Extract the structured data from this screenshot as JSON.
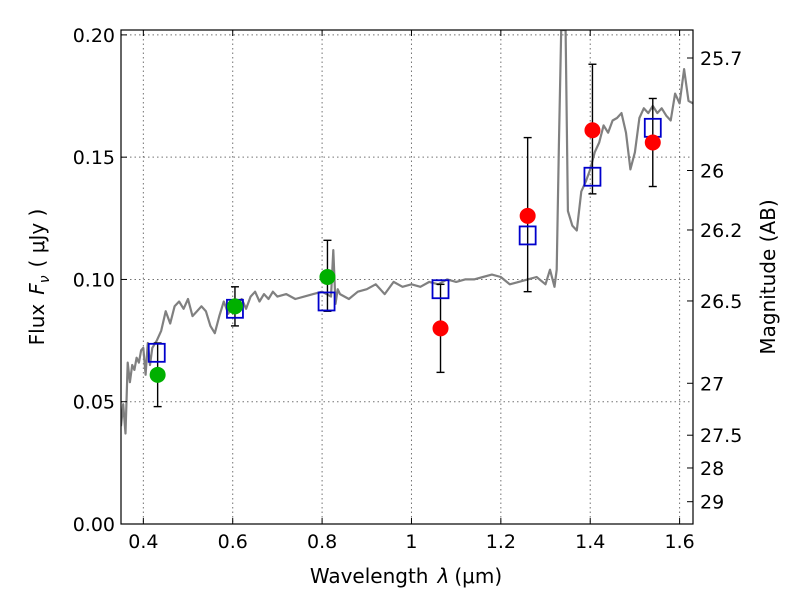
{
  "chart_data": {
    "type": "scatter",
    "xlabel": "Wavelength",
    "xlabel_symbol": "λ",
    "xlabel_unit": "(μm)",
    "ylabel": "Flux",
    "ylabel_symbol": "F",
    "ylabel_subscript": "ν",
    "ylabel_unit": "( μJy )",
    "y2label": "Magnitude (AB)",
    "xlim": [
      0.35,
      1.63
    ],
    "ylim": [
      0.0,
      0.202
    ],
    "grid": true,
    "x_ticks": [
      {
        "value": 0.4,
        "label": "0.4"
      },
      {
        "value": 0.6,
        "label": "0.6"
      },
      {
        "value": 0.8,
        "label": "0.8"
      },
      {
        "value": 1.0,
        "label": "1"
      },
      {
        "value": 1.2,
        "label": "1.2"
      },
      {
        "value": 1.4,
        "label": "1.4"
      },
      {
        "value": 1.6,
        "label": "1.6"
      }
    ],
    "y_ticks": [
      {
        "value": 0.0,
        "label": "0.00"
      },
      {
        "value": 0.05,
        "label": "0.05"
      },
      {
        "value": 0.1,
        "label": "0.10"
      },
      {
        "value": 0.15,
        "label": "0.15"
      },
      {
        "value": 0.2,
        "label": "0.20"
      }
    ],
    "mag_ticks": [
      {
        "mag": 25.7,
        "label": "25.7"
      },
      {
        "mag": 26,
        "label": "26"
      },
      {
        "mag": 26.2,
        "label": "26.2"
      },
      {
        "mag": 26.5,
        "label": "26.5"
      },
      {
        "mag": 27,
        "label": "27"
      },
      {
        "mag": 27.5,
        "label": "27.5"
      },
      {
        "mag": 28,
        "label": "28"
      },
      {
        "mag": 29,
        "label": "29"
      }
    ],
    "colors": {
      "spectrum": "#808080",
      "model": "#0000cc",
      "observed_optical": "#00b000",
      "observed_nir": "#ff0000",
      "errorbar": "#000000"
    },
    "spectrum": {
      "x": [
        0.35,
        0.355,
        0.36,
        0.365,
        0.37,
        0.375,
        0.38,
        0.385,
        0.39,
        0.395,
        0.4,
        0.405,
        0.41,
        0.415,
        0.42,
        0.43,
        0.44,
        0.45,
        0.46,
        0.47,
        0.48,
        0.49,
        0.5,
        0.51,
        0.52,
        0.53,
        0.54,
        0.55,
        0.56,
        0.57,
        0.58,
        0.59,
        0.6,
        0.61,
        0.62,
        0.63,
        0.64,
        0.65,
        0.66,
        0.67,
        0.68,
        0.69,
        0.7,
        0.72,
        0.74,
        0.76,
        0.78,
        0.8,
        0.81,
        0.82,
        0.825,
        0.83,
        0.835,
        0.84,
        0.86,
        0.88,
        0.9,
        0.92,
        0.94,
        0.96,
        0.98,
        1.0,
        1.02,
        1.04,
        1.06,
        1.08,
        1.1,
        1.12,
        1.14,
        1.16,
        1.18,
        1.2,
        1.22,
        1.24,
        1.26,
        1.28,
        1.3,
        1.31,
        1.32,
        1.325,
        1.33,
        1.335,
        1.34,
        1.345,
        1.35,
        1.36,
        1.37,
        1.38,
        1.39,
        1.4,
        1.41,
        1.42,
        1.43,
        1.44,
        1.45,
        1.46,
        1.47,
        1.48,
        1.49,
        1.5,
        1.51,
        1.52,
        1.53,
        1.54,
        1.55,
        1.56,
        1.57,
        1.58,
        1.59,
        1.6,
        1.61,
        1.62,
        1.63
      ],
      "y": [
        0.04,
        0.049,
        0.037,
        0.066,
        0.058,
        0.065,
        0.063,
        0.068,
        0.066,
        0.071,
        0.072,
        0.061,
        0.074,
        0.065,
        0.072,
        0.075,
        0.079,
        0.087,
        0.082,
        0.089,
        0.091,
        0.088,
        0.092,
        0.085,
        0.087,
        0.089,
        0.087,
        0.081,
        0.078,
        0.085,
        0.091,
        0.086,
        0.089,
        0.09,
        0.092,
        0.088,
        0.093,
        0.095,
        0.091,
        0.094,
        0.092,
        0.095,
        0.093,
        0.094,
        0.092,
        0.093,
        0.094,
        0.095,
        0.094,
        0.093,
        0.112,
        0.09,
        0.096,
        0.094,
        0.092,
        0.095,
        0.096,
        0.098,
        0.094,
        0.099,
        0.097,
        0.098,
        0.097,
        0.099,
        0.098,
        0.1,
        0.099,
        0.1,
        0.1,
        0.101,
        0.102,
        0.101,
        0.098,
        0.099,
        0.1,
        0.101,
        0.098,
        0.104,
        0.097,
        0.104,
        0.155,
        0.202,
        0.202,
        0.202,
        0.128,
        0.122,
        0.12,
        0.136,
        0.14,
        0.145,
        0.152,
        0.156,
        0.163,
        0.16,
        0.165,
        0.166,
        0.168,
        0.16,
        0.145,
        0.152,
        0.166,
        0.17,
        0.168,
        0.171,
        0.168,
        0.17,
        0.167,
        0.165,
        0.176,
        0.172,
        0.186,
        0.173,
        0.172
      ]
    },
    "model_points": [
      {
        "x": 0.43,
        "y": 0.07
      },
      {
        "x": 0.605,
        "y": 0.088
      },
      {
        "x": 0.81,
        "y": 0.091
      },
      {
        "x": 1.065,
        "y": 0.096
      },
      {
        "x": 1.26,
        "y": 0.118
      },
      {
        "x": 1.405,
        "y": 0.142
      },
      {
        "x": 1.54,
        "y": 0.162
      }
    ],
    "observed_points": [
      {
        "x": 0.432,
        "y": 0.061,
        "yerr_low": 0.048,
        "yerr_high": 0.074,
        "band": "optical"
      },
      {
        "x": 0.605,
        "y": 0.089,
        "yerr_low": 0.081,
        "yerr_high": 0.097,
        "band": "optical"
      },
      {
        "x": 0.812,
        "y": 0.101,
        "yerr_low": 0.087,
        "yerr_high": 0.116,
        "band": "optical"
      },
      {
        "x": 1.065,
        "y": 0.08,
        "yerr_low": 0.062,
        "yerr_high": 0.098,
        "band": "nir"
      },
      {
        "x": 1.26,
        "y": 0.126,
        "yerr_low": 0.095,
        "yerr_high": 0.158,
        "band": "nir"
      },
      {
        "x": 1.405,
        "y": 0.161,
        "yerr_low": 0.135,
        "yerr_high": 0.188,
        "band": "nir"
      },
      {
        "x": 1.54,
        "y": 0.156,
        "yerr_low": 0.138,
        "yerr_high": 0.174,
        "band": "nir"
      }
    ]
  }
}
